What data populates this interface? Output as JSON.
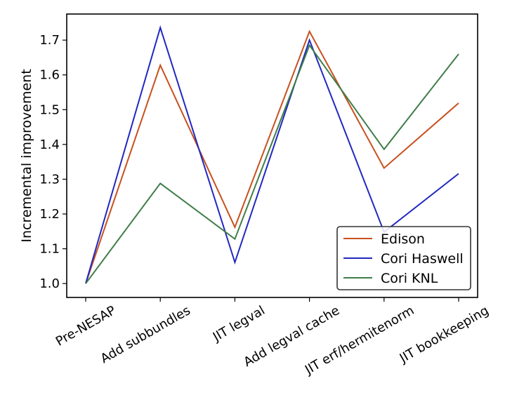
{
  "chart_data": {
    "type": "line",
    "title": "",
    "xlabel": "",
    "ylabel": "Incremental improvement",
    "categories": [
      "Pre-NESAP",
      "Add subbundles",
      "JIT legval",
      "Add legval cache",
      "JIT erf/hermitenorm",
      "JIT bookkeeping"
    ],
    "ylim": [
      0.96,
      1.775
    ],
    "yticks": [
      1.0,
      1.1,
      1.2,
      1.3,
      1.4,
      1.5,
      1.6,
      1.7
    ],
    "ytick_labels": [
      "1.0",
      "1.1",
      "1.2",
      "1.3",
      "1.4",
      "1.5",
      "1.6",
      "1.7"
    ],
    "grid": false,
    "legend_position": "lower-right",
    "series": [
      {
        "name": "Edison",
        "color": "#c8501e",
        "values": [
          1.0,
          1.628,
          1.162,
          1.725,
          1.332,
          1.519
        ]
      },
      {
        "name": "Cori Haswell",
        "color": "#2128c0",
        "values": [
          1.0,
          1.736,
          1.061,
          1.7,
          1.148,
          1.316
        ]
      },
      {
        "name": "Cori KNL",
        "color": "#3f7d48",
        "values": [
          1.0,
          1.288,
          1.128,
          1.685,
          1.386,
          1.66
        ]
      }
    ]
  }
}
